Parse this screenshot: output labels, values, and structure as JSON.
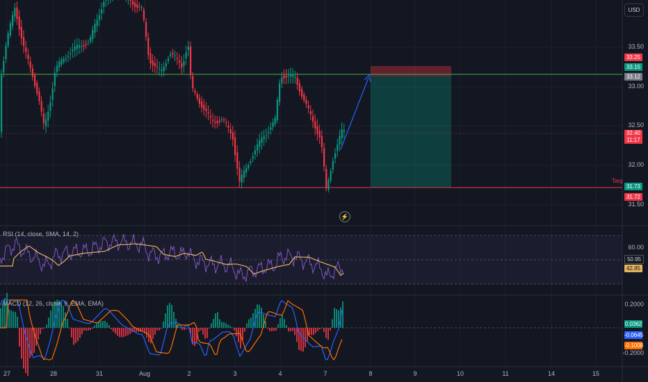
{
  "currency_button": "USD",
  "price_axis": {
    "ticks": [
      "33.50",
      "33.00",
      "32.50",
      "32.00",
      "31.50"
    ],
    "badges": [
      {
        "text": "33.25",
        "color": "#f23645"
      },
      {
        "text": "33.15",
        "color": "#089981"
      },
      {
        "text": "33.12",
        "color": "#787b86"
      },
      {
        "text": "32.40",
        "text2": "11:17",
        "color": "#f23645"
      },
      {
        "text": "31.73",
        "color": "#089981"
      },
      {
        "text": "31.72",
        "color": "#f23645"
      }
    ],
    "target_label": "Targ"
  },
  "rsi": {
    "title": "RSI (14, close, SMA, 14, 2)",
    "ticks": [
      "60.00"
    ],
    "badges": [
      {
        "text": "50.95",
        "color": "#b2b5be"
      },
      {
        "text": "42.85",
        "color": "#e2b45e"
      }
    ]
  },
  "macd": {
    "title": "MACD (12, 26, close, 9, EMA, EMA)",
    "ticks": [
      "0.2000",
      "-0.2000"
    ],
    "badges": [
      {
        "text": "0.0362",
        "color": "#089981"
      },
      {
        "text": "-0.0645",
        "color": "#2962ff"
      },
      {
        "text": "-0.1008",
        "color": "#ff6d00"
      }
    ]
  },
  "time_axis": [
    "27",
    "28",
    "31",
    "Aug",
    "2",
    "3",
    "4",
    "7",
    "8",
    "9",
    "10",
    "11",
    "14",
    "15"
  ],
  "colors": {
    "up": "#089981",
    "down": "#f23645",
    "bg": "#131722",
    "rsi_line": "#7e57c2",
    "rsi_sma": "#e2b45e",
    "macd_line": "#2962ff",
    "signal_line": "#ff6d00"
  }
}
